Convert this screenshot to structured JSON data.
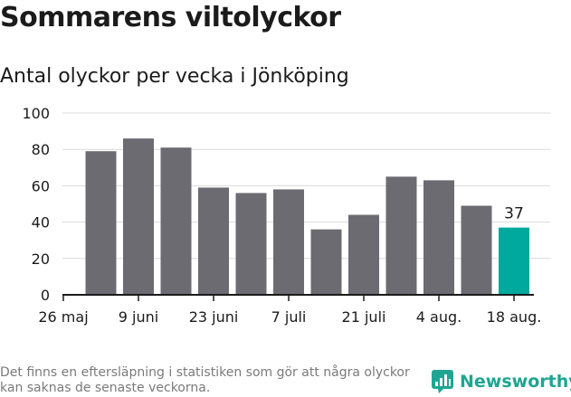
{
  "title": "Sommarens viltolyckor",
  "subtitle": "Antal olyckor per vecka i Jönköping",
  "footnote": "Det finns en eftersläpning i statistiken som gör att några olyckor kan saknas de senaste veckorna.",
  "brand": {
    "name": "Newsworthy",
    "icon": "newsworthy-logo-icon"
  },
  "colors": {
    "bar": "#6c6b71",
    "highlight": "#00a99d",
    "grid": "#d9d9d9",
    "axis": "#1b1b1b"
  },
  "chart_data": {
    "type": "bar",
    "x_dates": [
      "2019-05-26",
      "2019-06-02",
      "2019-06-09",
      "2019-06-16",
      "2019-06-23",
      "2019-06-30",
      "2019-07-07",
      "2019-07-14",
      "2019-07-21",
      "2019-07-28",
      "2019-08-04",
      "2019-08-11",
      "2019-08-18"
    ],
    "values": [
      null,
      79,
      86,
      81,
      59,
      56,
      58,
      36,
      44,
      65,
      63,
      49,
      37
    ],
    "highlight_index": 12,
    "data_labels": [
      {
        "index": 12,
        "text": "37"
      }
    ],
    "yticks": [
      0,
      20,
      40,
      60,
      80,
      100
    ],
    "ylim": [
      0,
      100
    ],
    "xticks": [
      {
        "index": 0,
        "label": "26 maj"
      },
      {
        "index": 2,
        "label": "9 juni"
      },
      {
        "index": 4,
        "label": "23 juni"
      },
      {
        "index": 6,
        "label": "7 juli"
      },
      {
        "index": 8,
        "label": "21 juli"
      },
      {
        "index": 10,
        "label": "4 aug."
      },
      {
        "index": 12,
        "label": "18 aug."
      }
    ],
    "grid": true,
    "legend": "none"
  }
}
